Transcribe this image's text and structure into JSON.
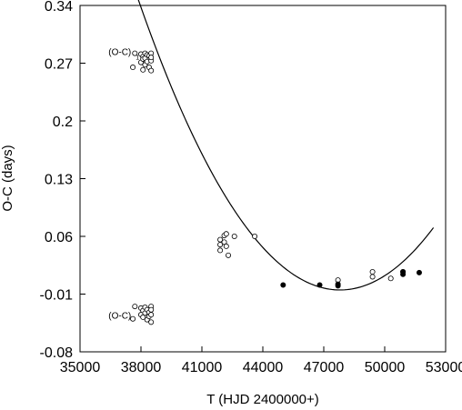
{
  "chart_data": {
    "type": "scatter",
    "xlabel": "T  (HJD 2400000+)",
    "ylabel": "O-C (days)",
    "xlim": [
      35000,
      53000
    ],
    "ylim": [
      -0.08,
      0.34
    ],
    "xticks": [
      35000,
      38000,
      41000,
      44000,
      47000,
      50000,
      53000
    ],
    "yticks": [
      -0.08,
      -0.01,
      0.06,
      0.13,
      0.2,
      0.27,
      0.34
    ],
    "xtick_labels": [
      "35000",
      "38000",
      "41000",
      "44000",
      "47000",
      "50000",
      "53000"
    ],
    "ytick_labels": [
      "-0.08",
      "-0.01",
      "0.06",
      "0.13",
      "0.2",
      "0.27",
      "0.34"
    ],
    "grid": false,
    "legend": "none",
    "annotations": [
      {
        "text": "(O-C)",
        "subscript": "1",
        "x": 36400,
        "y": 0.28
      },
      {
        "text": "(O-C)",
        "subscript": "",
        "x": 36400,
        "y": -0.04
      }
    ],
    "series": [
      {
        "marker": "open-circle",
        "points": [
          [
            37700,
            0.282
          ],
          [
            37600,
            0.265
          ],
          [
            38000,
            0.281
          ],
          [
            38000,
            0.271
          ],
          [
            38100,
            0.278
          ],
          [
            38100,
            0.275
          ],
          [
            38100,
            0.262
          ],
          [
            38200,
            0.282
          ],
          [
            38200,
            0.268
          ],
          [
            38200,
            0.276
          ],
          [
            38300,
            0.272
          ],
          [
            38300,
            0.28
          ],
          [
            38400,
            0.265
          ],
          [
            38400,
            0.279
          ],
          [
            38500,
            0.282
          ],
          [
            38500,
            0.273
          ],
          [
            38500,
            0.261
          ],
          [
            38500,
            0.277
          ],
          [
            37700,
            -0.025
          ],
          [
            37600,
            -0.04
          ],
          [
            38000,
            -0.027
          ],
          [
            38000,
            -0.035
          ],
          [
            38100,
            -0.03
          ],
          [
            38100,
            -0.038
          ],
          [
            38200,
            -0.026
          ],
          [
            38200,
            -0.033
          ],
          [
            38300,
            -0.041
          ],
          [
            38300,
            -0.029
          ],
          [
            38400,
            -0.037
          ],
          [
            38400,
            -0.032
          ],
          [
            38500,
            -0.025
          ],
          [
            38500,
            -0.035
          ],
          [
            38500,
            -0.044
          ],
          [
            38500,
            -0.029
          ],
          [
            41900,
            0.056
          ],
          [
            41900,
            0.05
          ],
          [
            41900,
            0.043
          ],
          [
            42100,
            0.061
          ],
          [
            42100,
            0.053
          ],
          [
            42200,
            0.048
          ],
          [
            42200,
            0.063
          ],
          [
            42300,
            0.037
          ],
          [
            42600,
            0.06
          ],
          [
            43600,
            0.06
          ],
          [
            47700,
            0.007
          ],
          [
            49400,
            0.017
          ],
          [
            49400,
            0.011
          ],
          [
            50300,
            0.009
          ],
          [
            50900,
            0.017
          ]
        ]
      },
      {
        "marker": "filled-circle",
        "points": [
          [
            45000,
            0.001
          ],
          [
            46800,
            0.001
          ],
          [
            47700,
            0.002
          ],
          [
            47700,
            0.0
          ],
          [
            50900,
            0.014
          ],
          [
            50900,
            0.017
          ],
          [
            51700,
            0.016
          ]
        ]
      },
      {
        "marker": "line",
        "fit": "parabola",
        "x_range": [
          37400,
          52400
        ],
        "vertex": [
          47800,
          -0.005
        ],
        "a": 3.57e-09
      }
    ]
  }
}
